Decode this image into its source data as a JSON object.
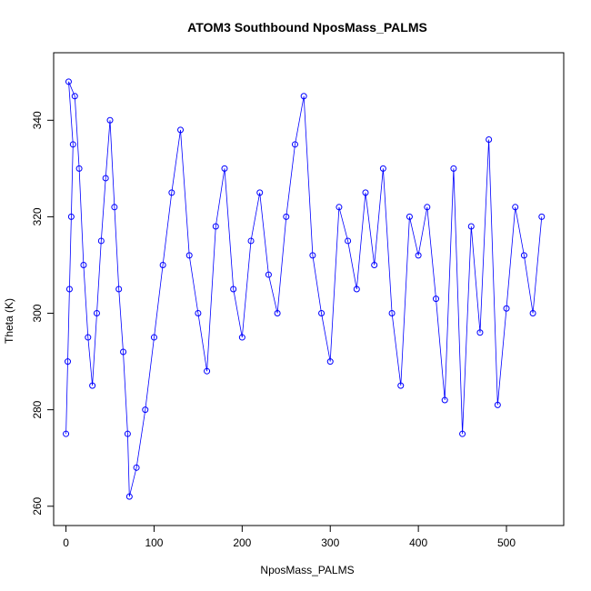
{
  "chart_data": {
    "type": "scatter",
    "title": "ATOM3 Southbound NposMass_PALMS",
    "xlabel": "NposMass_PALMS",
    "ylabel": "Theta (K)",
    "xlim": [
      -14,
      565
    ],
    "ylim": [
      256,
      354
    ],
    "xticks": [
      "0",
      "100",
      "200",
      "300",
      "400",
      "500"
    ],
    "yticks": [
      "260",
      "280",
      "300",
      "320",
      "340"
    ],
    "grid": false,
    "legend": "none",
    "marker": "open-circle",
    "connect_points": true,
    "series_color": "#0000ff",
    "series": [
      {
        "points": [
          [
            0,
            275
          ],
          [
            2,
            290
          ],
          [
            4,
            305
          ],
          [
            6,
            320
          ],
          [
            8,
            335
          ],
          [
            3,
            348
          ],
          [
            10,
            345
          ],
          [
            15,
            330
          ],
          [
            20,
            310
          ],
          [
            25,
            295
          ],
          [
            30,
            285
          ],
          [
            35,
            300
          ],
          [
            40,
            315
          ],
          [
            45,
            328
          ],
          [
            50,
            340
          ],
          [
            55,
            322
          ],
          [
            60,
            305
          ],
          [
            65,
            292
          ],
          [
            70,
            275
          ],
          [
            72,
            262
          ],
          [
            80,
            268
          ],
          [
            90,
            280
          ],
          [
            100,
            295
          ],
          [
            110,
            310
          ],
          [
            120,
            325
          ],
          [
            130,
            338
          ],
          [
            140,
            312
          ],
          [
            150,
            300
          ],
          [
            160,
            288
          ],
          [
            170,
            318
          ],
          [
            180,
            330
          ],
          [
            190,
            305
          ],
          [
            200,
            295
          ],
          [
            210,
            315
          ],
          [
            220,
            325
          ],
          [
            230,
            308
          ],
          [
            240,
            300
          ],
          [
            250,
            320
          ],
          [
            260,
            335
          ],
          [
            270,
            345
          ],
          [
            280,
            312
          ],
          [
            290,
            300
          ],
          [
            300,
            290
          ],
          [
            310,
            322
          ],
          [
            320,
            315
          ],
          [
            330,
            305
          ],
          [
            340,
            325
          ],
          [
            350,
            310
          ],
          [
            360,
            330
          ],
          [
            370,
            300
          ],
          [
            380,
            285
          ],
          [
            390,
            320
          ],
          [
            400,
            312
          ],
          [
            410,
            322
          ],
          [
            420,
            303
          ],
          [
            430,
            282
          ],
          [
            440,
            330
          ],
          [
            450,
            275
          ],
          [
            460,
            318
          ],
          [
            470,
            296
          ],
          [
            480,
            336
          ],
          [
            490,
            281
          ],
          [
            500,
            301
          ],
          [
            510,
            322
          ],
          [
            520,
            312
          ],
          [
            530,
            300
          ],
          [
            540,
            320
          ]
        ]
      }
    ]
  }
}
